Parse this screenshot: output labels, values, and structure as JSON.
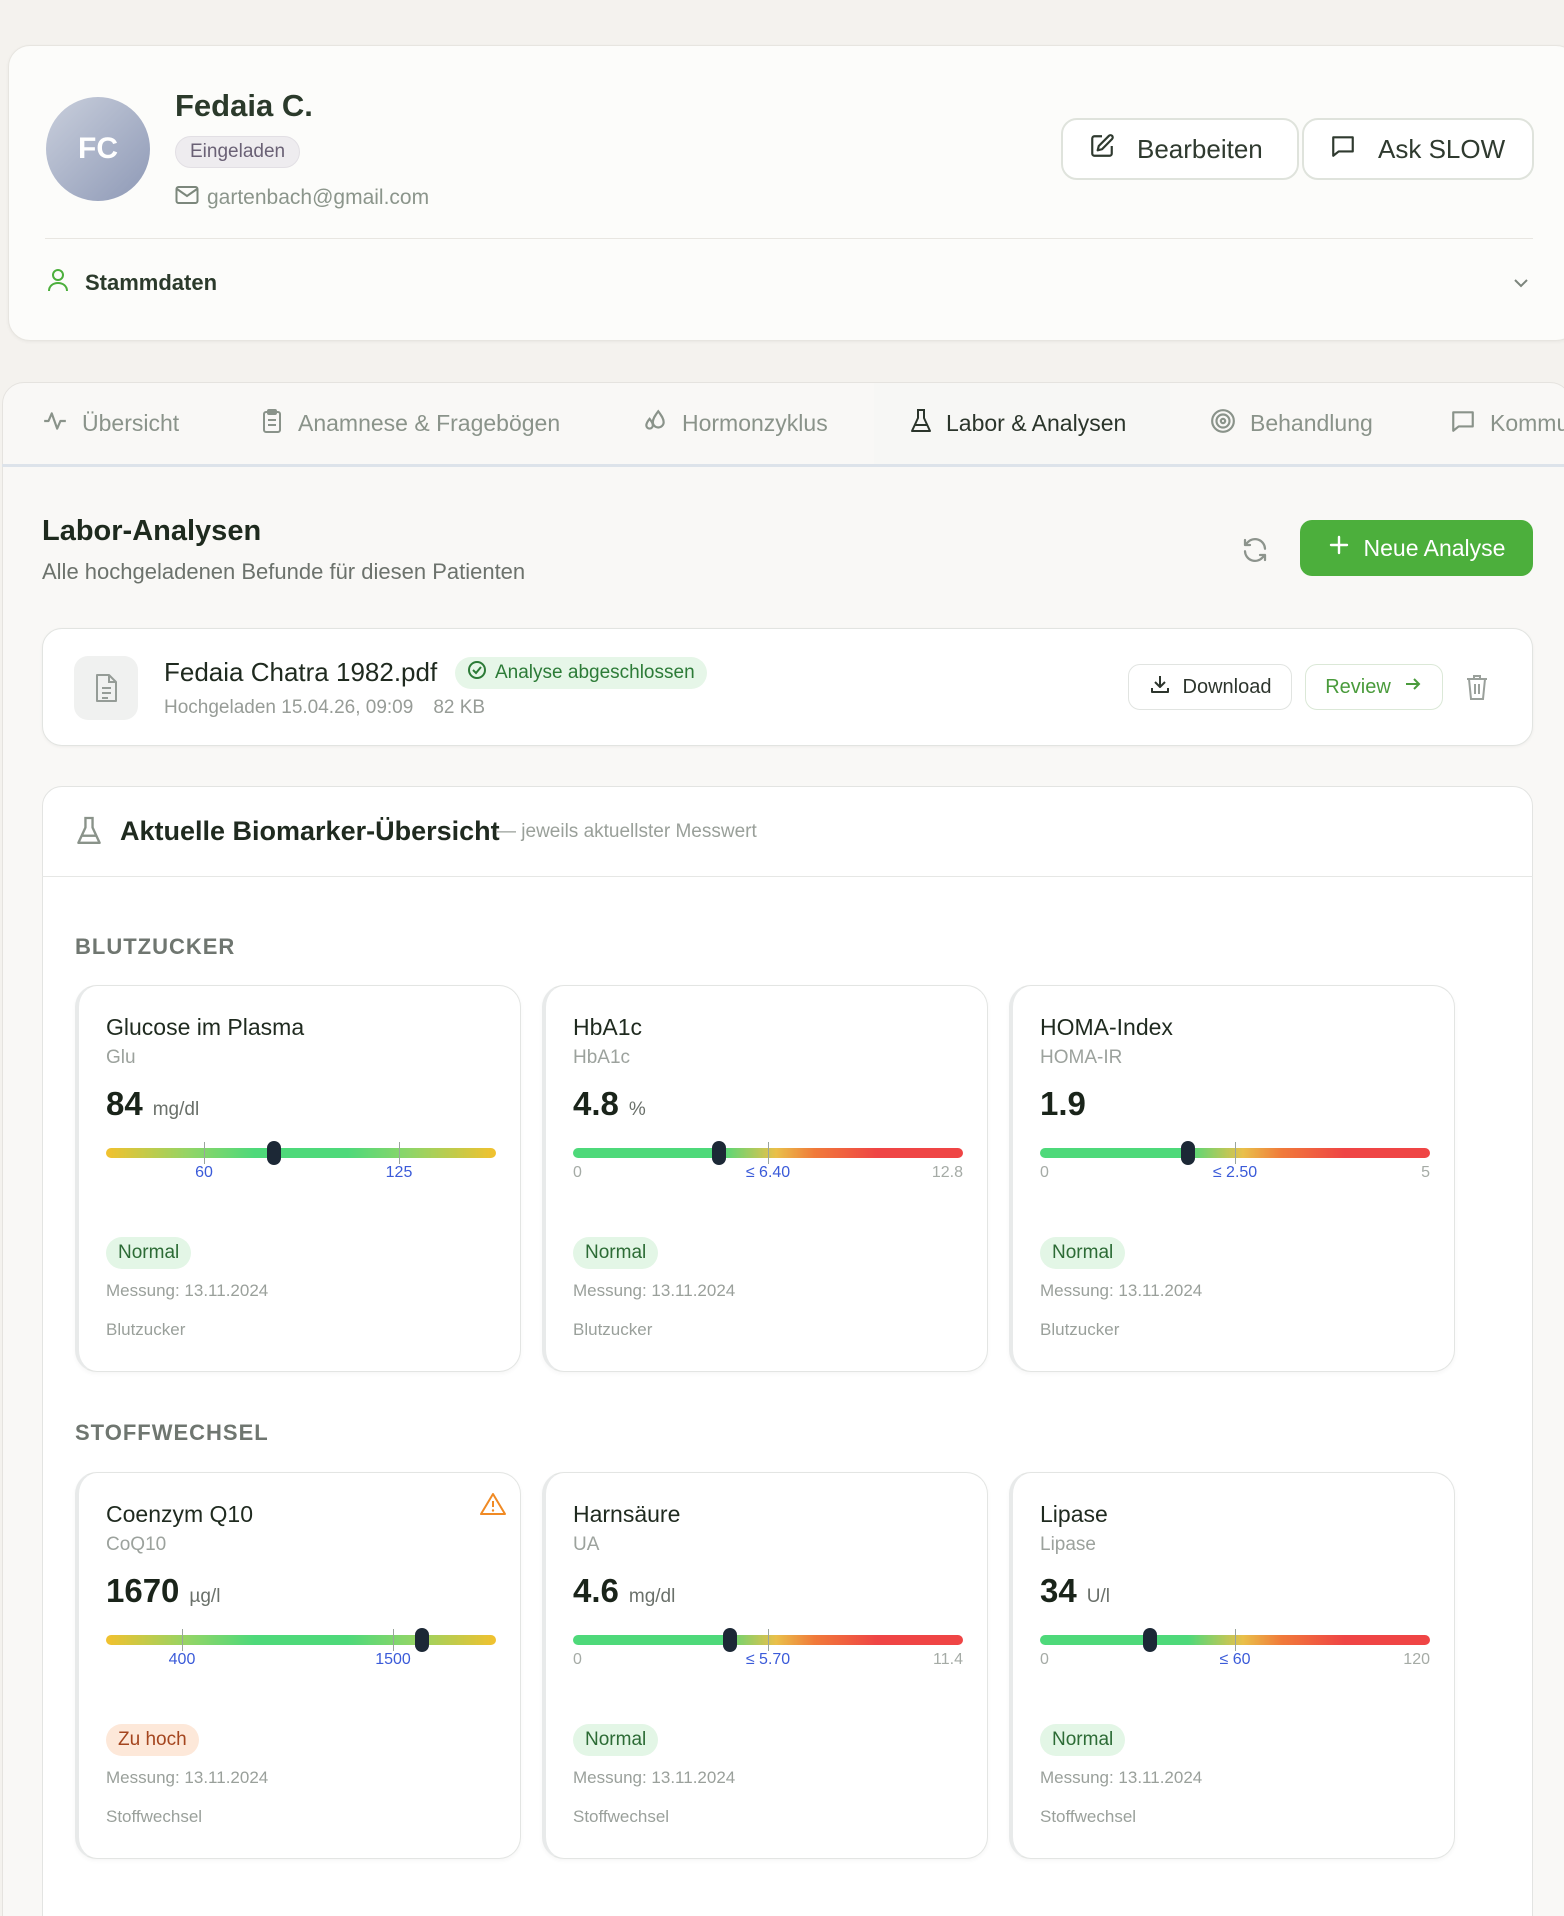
{
  "patient": {
    "initials": "FC",
    "name": "Fedaia C.",
    "status": "Eingeladen",
    "email": "gartenbach@gmail.com"
  },
  "header_actions": {
    "edit_label": "Bearbeiten",
    "ask_label": "Ask SLOW"
  },
  "stammdaten_label": "Stammdaten",
  "tabs": [
    {
      "label": "Übersicht",
      "icon": "activity-icon"
    },
    {
      "label": "Anamnese & Fragebögen",
      "icon": "clipboard-icon"
    },
    {
      "label": "Hormonzyklus",
      "icon": "droplets-icon"
    },
    {
      "label": "Labor & Analysen",
      "icon": "flask-icon",
      "active": true
    },
    {
      "label": "Behandlung",
      "icon": "target-icon"
    },
    {
      "label": "Kommu",
      "icon": "message-icon"
    }
  ],
  "section": {
    "title": "Labor-Analysen",
    "subtitle": "Alle hochgeladenen Befunde für diesen Patienten",
    "new_button": "Neue Analyse"
  },
  "file": {
    "name": "Fedaia Chatra 1982.pdf",
    "status": "Analyse abgeschlossen",
    "uploaded": "Hochgeladen 15.04.26, 09:09",
    "size": "82 KB",
    "download_label": "Download",
    "review_label": "Review"
  },
  "biomarker": {
    "title": "Aktuelle Biomarker-Übersicht",
    "subtitle": "— jeweils aktuellster Messwert",
    "categories": [
      {
        "label": "BLUTZUCKER",
        "cards": [
          {
            "name": "Glucose im Plasma",
            "code": "Glu",
            "value": "84",
            "unit": "mg/dl",
            "bar": "range",
            "marker_pct": 0.43,
            "ticks": [
              {
                "label": "60",
                "pct": 0.25
              },
              {
                "label": "125",
                "pct": 0.75
              }
            ],
            "status": "Normal",
            "date": "Messung: 13.11.2024",
            "category": "Blutzucker"
          },
          {
            "name": "HbA1c",
            "code": "HbA1c",
            "value": "4.8",
            "unit": "%",
            "bar": "limit",
            "marker_pct": 0.375,
            "min": "0",
            "limit": "≤ 6.40",
            "max": "12.8",
            "status": "Normal",
            "date": "Messung: 13.11.2024",
            "category": "Blutzucker"
          },
          {
            "name": "HOMA-Index",
            "code": "HOMA-IR",
            "value": "1.9",
            "unit": "",
            "bar": "limit",
            "marker_pct": 0.38,
            "min": "0",
            "limit": "≤ 2.50",
            "max": "5",
            "status": "Normal",
            "date": "Messung: 13.11.2024",
            "category": "Blutzucker"
          }
        ]
      },
      {
        "label": "STOFFWECHSEL",
        "cards": [
          {
            "name": "Coenzym Q10",
            "code": "CoQ10",
            "value": "1670",
            "unit": "µg/l",
            "bar": "range",
            "marker_pct": 0.81,
            "ticks": [
              {
                "label": "400",
                "pct": 0.195
              },
              {
                "label": "1500",
                "pct": 0.735
              }
            ],
            "status": "Zu hoch",
            "warning": true,
            "date": "Messung: 13.11.2024",
            "category": "Stoffwechsel"
          },
          {
            "name": "Harnsäure",
            "code": "UA",
            "value": "4.6",
            "unit": "mg/dl",
            "bar": "limit",
            "marker_pct": 0.403,
            "min": "0",
            "limit": "≤ 5.70",
            "max": "11.4",
            "status": "Normal",
            "date": "Messung: 13.11.2024",
            "category": "Stoffwechsel"
          },
          {
            "name": "Lipase",
            "code": "Lipase",
            "value": "34",
            "unit": "U/l",
            "bar": "limit",
            "marker_pct": 0.283,
            "min": "0",
            "limit": "≤ 60",
            "max": "120",
            "status": "Normal",
            "date": "Messung: 13.11.2024",
            "category": "Stoffwechsel"
          }
        ]
      }
    ]
  },
  "colors": {
    "accent_green": "#4caf3c",
    "marker": "#1c2836",
    "limit_label": "#3b5bd9",
    "warning": "#f08a24"
  }
}
